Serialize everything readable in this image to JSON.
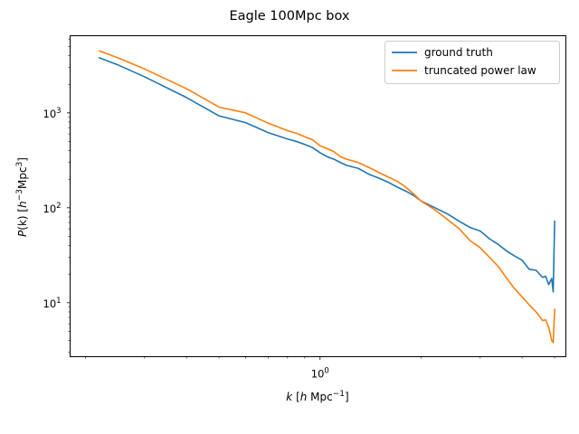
{
  "chart_data": {
    "type": "line",
    "title": "Eagle 100Mpc box",
    "xlabel_parts": {
      "k": "k",
      "unit_a": "[",
      "h": "h",
      "unit_b": " Mpc",
      "exp": "−1",
      "close": "]"
    },
    "ylabel_parts": {
      "p": "P",
      "paren": "(k)",
      "unit_a": " [",
      "h": "h",
      "exp1": "−3",
      "mpc": "Mpc",
      "exp2": "3",
      "close": "]"
    },
    "x_scale": "log",
    "y_scale": "log",
    "xlim": [
      0.18,
      5.4
    ],
    "ylim": [
      2.7,
      6500
    ],
    "x_tick_labels": [
      {
        "value": 1,
        "base": "10",
        "exp": "0"
      }
    ],
    "y_tick_labels": [
      {
        "value": 10,
        "base": "10",
        "exp": "1"
      },
      {
        "value": 100,
        "base": "10",
        "exp": "2"
      },
      {
        "value": 1000,
        "base": "10",
        "exp": "3"
      }
    ],
    "grid": false,
    "legend_position": "top-right",
    "series": [
      {
        "name": "ground truth",
        "color": "#1f77b4",
        "x": [
          0.22,
          0.25,
          0.3,
          0.4,
          0.5,
          0.6,
          0.7,
          0.8,
          0.85,
          0.9,
          0.95,
          1.0,
          1.05,
          1.1,
          1.15,
          1.2,
          1.3,
          1.4,
          1.5,
          1.6,
          1.7,
          1.8,
          1.9,
          2.0,
          2.2,
          2.4,
          2.6,
          2.8,
          3.0,
          3.2,
          3.4,
          3.6,
          3.8,
          4.0,
          4.2,
          4.4,
          4.6,
          4.7,
          4.8,
          4.9,
          4.95,
          5.0
        ],
        "y": [
          3800,
          3200,
          2400,
          1450,
          930,
          790,
          620,
          530,
          500,
          465,
          430,
          380,
          345,
          325,
          300,
          280,
          260,
          225,
          205,
          185,
          165,
          150,
          135,
          118,
          100,
          86,
          72,
          62,
          57,
          47,
          41,
          35,
          31,
          28,
          22.5,
          22,
          18.5,
          19,
          15.5,
          18,
          13,
          72
        ]
      },
      {
        "name": "truncated power law",
        "color": "#ff7f0e",
        "x": [
          0.22,
          0.25,
          0.3,
          0.4,
          0.5,
          0.6,
          0.7,
          0.8,
          0.85,
          0.9,
          0.95,
          1.0,
          1.05,
          1.1,
          1.15,
          1.2,
          1.3,
          1.4,
          1.5,
          1.6,
          1.7,
          1.8,
          1.9,
          2.0,
          2.2,
          2.4,
          2.6,
          2.8,
          3.0,
          3.2,
          3.4,
          3.6,
          3.8,
          4.0,
          4.2,
          4.4,
          4.6,
          4.7,
          4.8,
          4.9,
          4.95,
          5.0
        ],
        "y": [
          4500,
          3800,
          2900,
          1800,
          1150,
          1000,
          780,
          650,
          610,
          560,
          520,
          450,
          420,
          390,
          345,
          325,
          300,
          265,
          235,
          210,
          190,
          165,
          140,
          118,
          95,
          75,
          60,
          45,
          38,
          30,
          24,
          18,
          14,
          11.5,
          9.5,
          8,
          6.5,
          6.6,
          5.5,
          4,
          3.8,
          8.5
        ]
      }
    ]
  }
}
